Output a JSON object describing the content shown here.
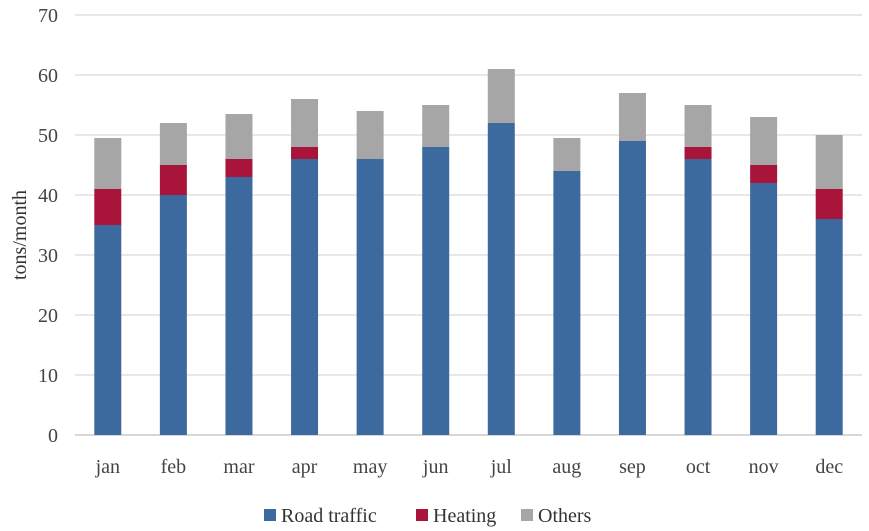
{
  "chart_data": {
    "type": "bar",
    "stacked": true,
    "title": "",
    "xlabel": "",
    "ylabel": "tons/month",
    "ylim": [
      0,
      70
    ],
    "yticks": [
      0,
      10,
      20,
      30,
      40,
      50,
      60,
      70
    ],
    "grid": "horizontal",
    "legend_position": "bottom",
    "categories": [
      "jan",
      "feb",
      "mar",
      "apr",
      "may",
      "jun",
      "jul",
      "aug",
      "sep",
      "oct",
      "nov",
      "dec"
    ],
    "series": [
      {
        "name": "Road traffic",
        "color": "#3d6a9e",
        "values": [
          35,
          40,
          43,
          46,
          46,
          48,
          52,
          44,
          49,
          46,
          42,
          36
        ]
      },
      {
        "name": "Heating",
        "color": "#a8143a",
        "values": [
          6,
          5,
          3,
          2,
          0,
          0,
          0,
          0,
          0,
          2,
          3,
          5
        ]
      },
      {
        "name": "Others",
        "color": "#a6a6a6",
        "values": [
          8.5,
          7,
          7.5,
          8,
          8,
          7,
          9,
          5.5,
          8,
          7,
          8,
          9
        ]
      }
    ]
  }
}
